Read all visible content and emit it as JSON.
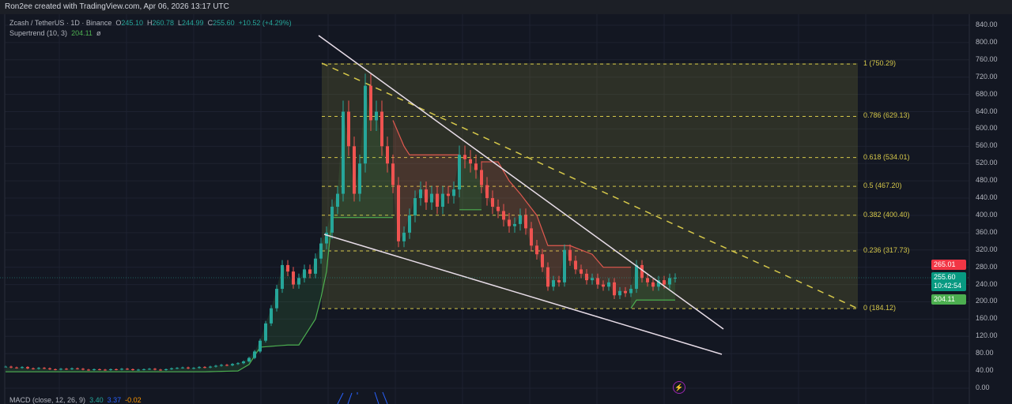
{
  "header": {
    "credit": "Ron2ee created with TradingView.com, Apr 06, 2026 13:17 UTC"
  },
  "legend": {
    "symbol": "Zcash / TetherUS · 1D · Binance",
    "o_label": "O",
    "o": "245.10",
    "h_label": "H",
    "h": "260.78",
    "l_label": "L",
    "l": "244.99",
    "c_label": "C",
    "c": "255.60",
    "change": "+10.52 (+4.29%)",
    "supertrend": "Supertrend (10, 3)",
    "supertrend_value": "204.11",
    "supertrend_flag": "ø",
    "macd": "MACD (close, 12, 26, 9)",
    "macd_v1": "3.40",
    "macd_v2": "3.37",
    "macd_v3": "-0.02"
  },
  "price_tags": {
    "high_tag": "265.01",
    "last": "255.60",
    "countdown": "10:42:54",
    "supertrend": "204.11"
  },
  "colors": {
    "up": "#26a69a",
    "down": "#ef5350",
    "supertrend_up": "#4caf50",
    "supertrend_down": "#e0594f",
    "fib": "#d6c84a",
    "trendline": "#e8dde8",
    "background": "#131722"
  },
  "chart_data": {
    "type": "candlestick",
    "ylim": [
      0,
      840
    ],
    "y_ticks": [
      "840.00",
      "800.00",
      "760.00",
      "720.00",
      "680.00",
      "640.00",
      "600.00",
      "560.00",
      "520.00",
      "480.00",
      "440.00",
      "400.00",
      "360.00",
      "320.00",
      "280.00",
      "240.00",
      "200.00",
      "160.00",
      "120.00",
      "80.00",
      "40.00",
      "0.00"
    ],
    "closes": [
      50,
      48,
      47,
      49,
      46,
      45,
      47,
      46,
      44,
      43,
      45,
      44,
      46,
      45,
      43,
      42,
      44,
      43,
      42,
      44,
      43,
      45,
      44,
      42,
      43,
      44,
      45,
      43,
      42,
      44,
      46,
      47,
      48,
      46,
      47,
      49,
      48,
      50,
      52,
      54,
      53,
      56,
      58,
      62,
      70,
      85,
      110,
      150,
      185,
      230,
      285,
      270,
      240,
      255,
      275,
      265,
      300,
      335,
      360,
      420,
      450,
      640,
      560,
      450,
      520,
      700,
      620,
      640,
      560,
      520,
      470,
      340,
      360,
      400,
      440,
      460,
      430,
      450,
      420,
      450,
      445,
      460,
      540,
      530,
      520,
      505,
      470,
      440,
      420,
      410,
      390,
      375,
      380,
      400,
      370,
      330,
      310,
      280,
      235,
      250,
      245,
      320,
      295,
      275,
      265,
      250,
      255,
      240,
      235,
      245,
      215,
      225,
      220,
      230,
      285,
      255,
      245,
      235,
      250,
      240,
      255,
      255.6
    ],
    "supertrend_segments": [
      {
        "direction": "up",
        "points": [
          [
            0,
            38
          ],
          [
            36,
            38
          ],
          [
            42,
            40
          ],
          [
            44,
            55
          ],
          [
            46,
            95
          ],
          [
            51,
            100
          ],
          [
            53,
            100
          ],
          [
            54,
            120
          ],
          [
            56,
            160
          ],
          [
            57,
            210
          ],
          [
            58,
            270
          ],
          [
            59,
            395
          ],
          [
            70,
            395
          ]
        ]
      },
      {
        "direction": "down",
        "points": [
          [
            70,
            620
          ],
          [
            72,
            560
          ],
          [
            73,
            540
          ],
          [
            82,
            540
          ]
        ]
      },
      {
        "direction": "up",
        "points": [
          [
            82,
            413
          ],
          [
            86,
            413
          ]
        ]
      },
      {
        "direction": "down",
        "points": [
          [
            86,
            524
          ],
          [
            89,
            524
          ],
          [
            91,
            480
          ],
          [
            93,
            450
          ],
          [
            96,
            400
          ],
          [
            98,
            330
          ],
          [
            102,
            330
          ],
          [
            106,
            310
          ],
          [
            108,
            280
          ],
          [
            113,
            280
          ]
        ]
      },
      {
        "direction": "up",
        "points": [
          [
            113,
            185
          ],
          [
            114,
            204.11
          ],
          [
            121,
            204.11
          ]
        ]
      }
    ],
    "fibonacci": [
      {
        "ratio": "1",
        "price": 750.29,
        "label": "1 (750.29)"
      },
      {
        "ratio": "0.786",
        "price": 629.13,
        "label": "0.786 (629.13)"
      },
      {
        "ratio": "0.618",
        "price": 534.01,
        "label": "0.618 (534.01)"
      },
      {
        "ratio": "0.5",
        "price": 467.2,
        "label": "0.5 (467.20)"
      },
      {
        "ratio": "0.382",
        "price": 400.4,
        "label": "0.382 (400.40)"
      },
      {
        "ratio": "0.236",
        "price": 317.73,
        "label": "0.236 (317.73)"
      },
      {
        "ratio": "0",
        "price": 184.12,
        "label": "0 (184.12)"
      }
    ],
    "grid": true
  }
}
